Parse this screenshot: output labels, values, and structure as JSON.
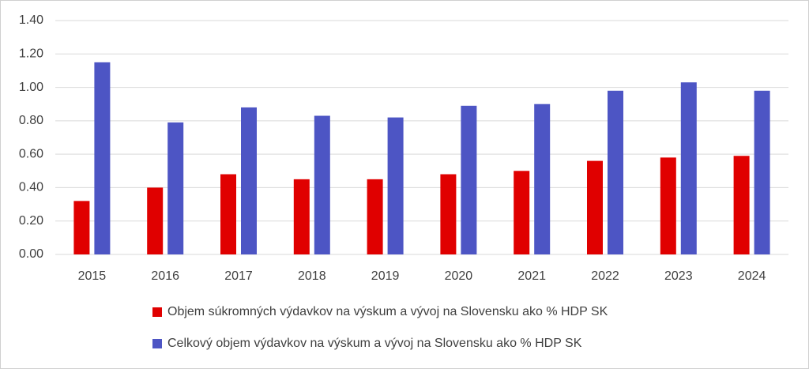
{
  "chart_data": {
    "type": "bar",
    "categories": [
      "2015",
      "2016",
      "2017",
      "2018",
      "2019",
      "2020",
      "2021",
      "2022",
      "2023",
      "2024"
    ],
    "series": [
      {
        "name": "Objem súkromných výdavkov na výskum a vývoj na Slovensku ako % HDP SK",
        "color": "#e00000",
        "values": [
          0.32,
          0.4,
          0.48,
          0.45,
          0.45,
          0.48,
          0.5,
          0.56,
          0.58,
          0.59
        ]
      },
      {
        "name": "Celkový objem výdavkov na výskum a vývoj na Slovensku ako % HDP SK",
        "color": "#4d55c4",
        "values": [
          1.15,
          0.79,
          0.88,
          0.83,
          0.82,
          0.89,
          0.9,
          0.98,
          1.03,
          0.98
        ]
      }
    ],
    "ylim": [
      0,
      1.4
    ],
    "yticks": [
      {
        "value": 0,
        "label": "0.00"
      },
      {
        "value": 0.2,
        "label": "0.20"
      },
      {
        "value": 0.4,
        "label": "0.40"
      },
      {
        "value": 0.6,
        "label": "0.60"
      },
      {
        "value": 0.8,
        "label": "0.80"
      },
      {
        "value": 1,
        "label": "1.00"
      },
      {
        "value": 1.2,
        "label": "1.20"
      },
      {
        "value": 1.4,
        "label": "1.40"
      }
    ],
    "grid": true,
    "legend": "bottom"
  }
}
